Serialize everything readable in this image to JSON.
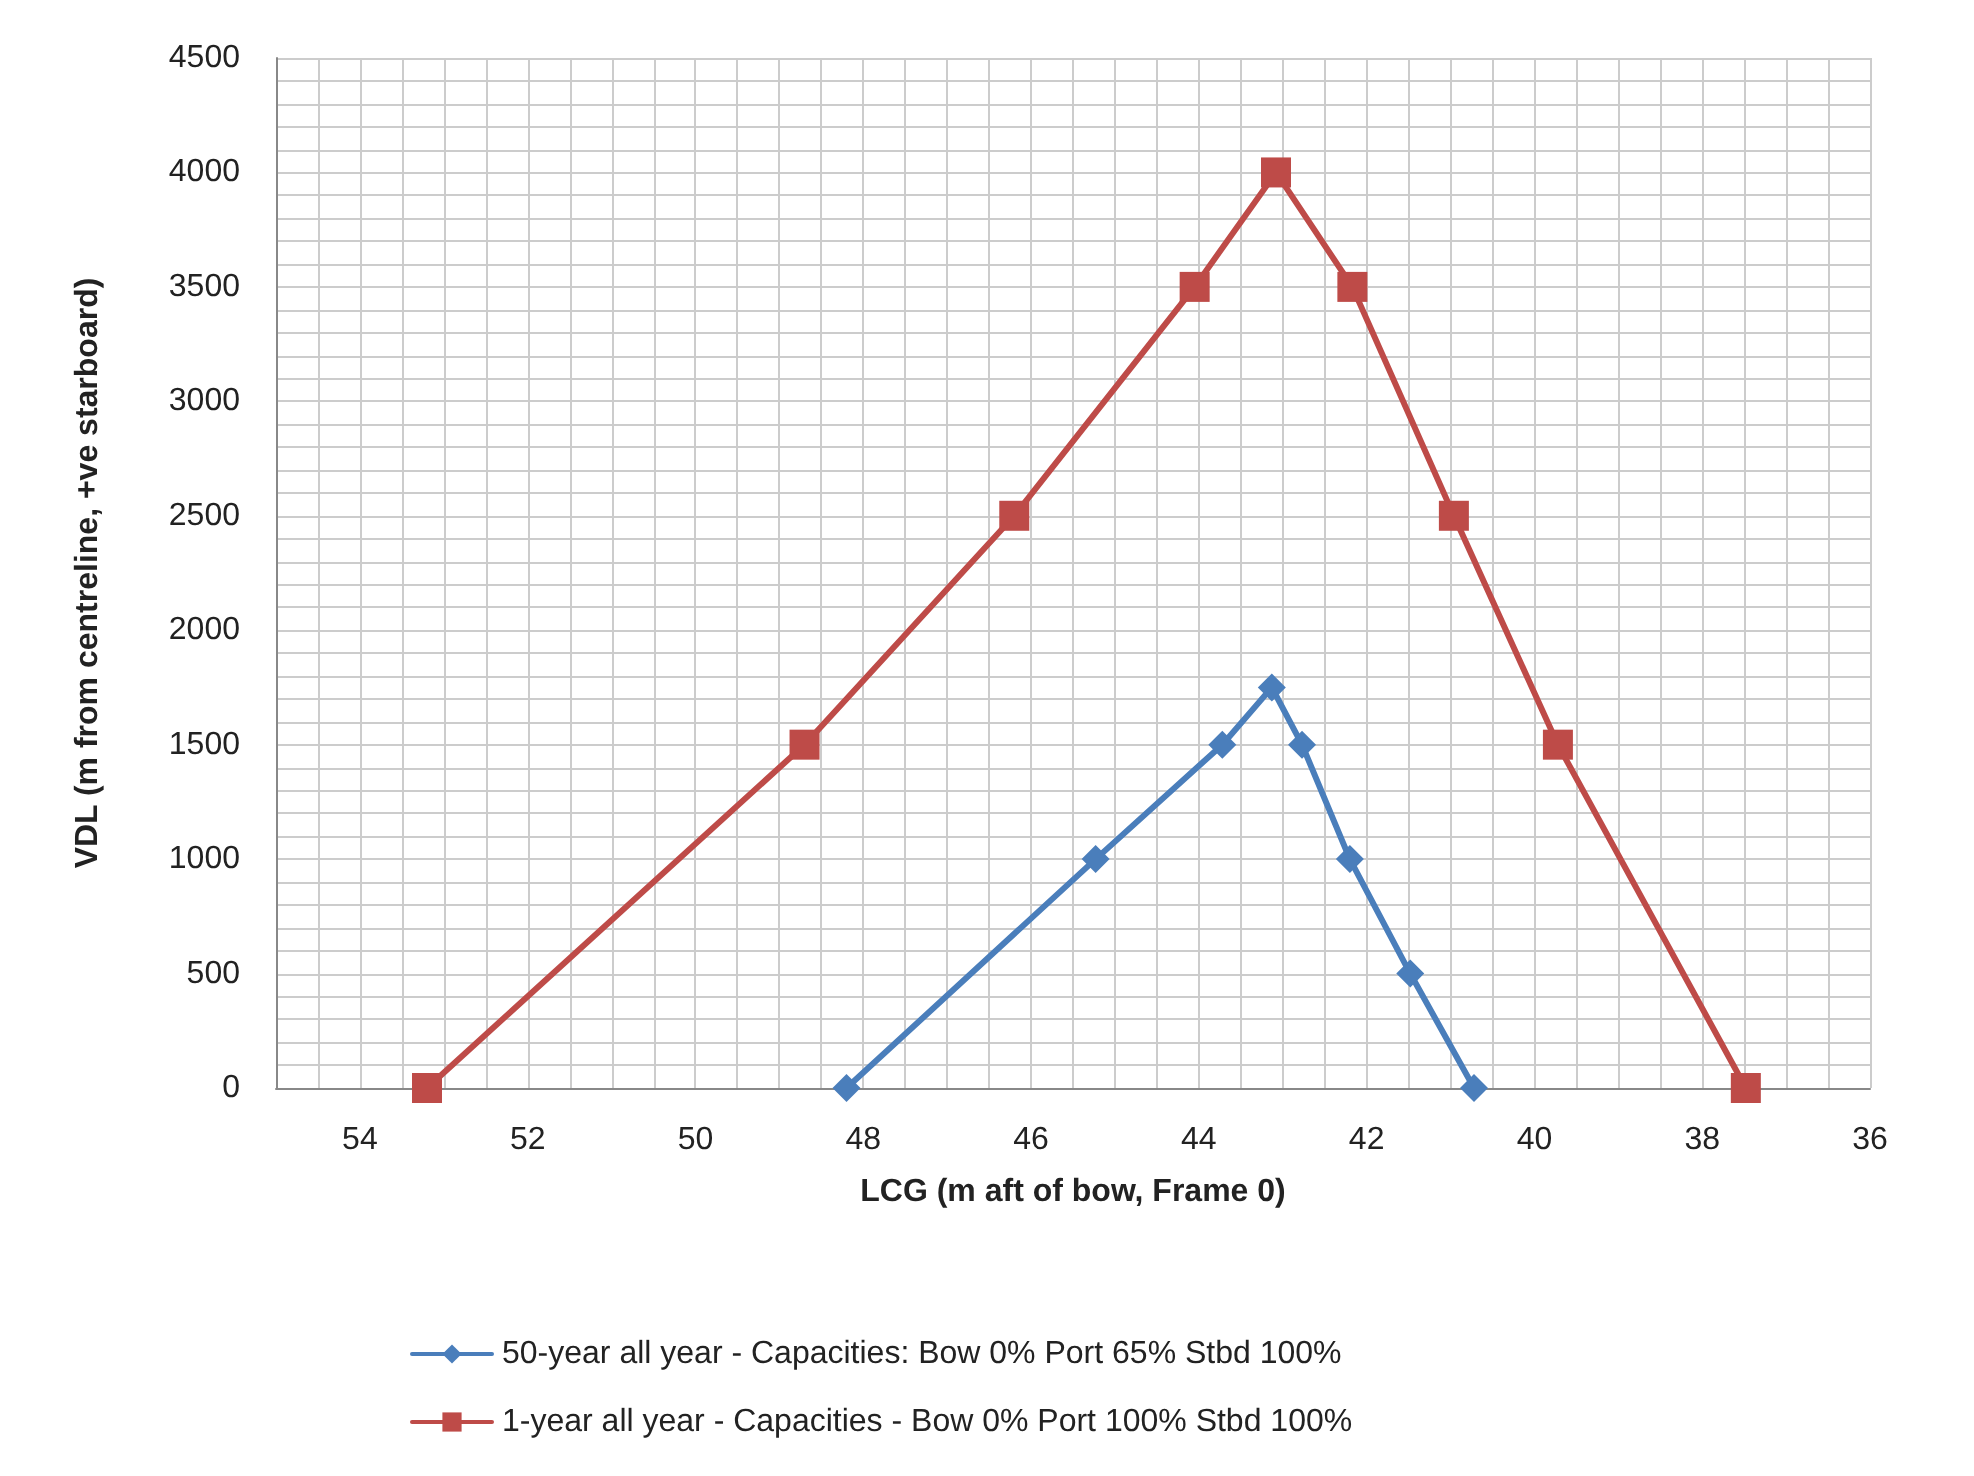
{
  "chart_data": {
    "type": "line",
    "xlabel": "LCG (m aft of bow, Frame 0)",
    "ylabel": "VDL (m from centreline, +ve starboard)",
    "xlim": [
      55,
      36
    ],
    "xticks": [
      54,
      52,
      50,
      48,
      46,
      44,
      42,
      40,
      38,
      36
    ],
    "ylim": [
      0,
      4500
    ],
    "yticks": [
      0,
      500,
      1000,
      1500,
      2000,
      2500,
      3000,
      3500,
      4000,
      4500
    ],
    "grid": true,
    "legend": "bottom",
    "line_style": "solid",
    "series": [
      {
        "name": "50-year all year - Capacities: Bow 0% Port 65% Stbd 100%",
        "color": "#4a7ebb",
        "marker": "diamond",
        "x": [
          48.2,
          45.23,
          43.72,
          43.13,
          42.77,
          42.2,
          41.48,
          40.72
        ],
        "values": [
          0,
          1000,
          1500,
          1750,
          1500,
          1000,
          500,
          0
        ]
      },
      {
        "name": "1-year all year - Capacities - Bow 0% Port 100% Stbd 100%",
        "color": "#be4b48",
        "marker": "square",
        "x": [
          53.2,
          48.7,
          46.2,
          44.05,
          43.08,
          42.17,
          40.96,
          39.72,
          37.48
        ],
        "values": [
          0,
          1500,
          2500,
          3500,
          4000,
          3500,
          2500,
          1500,
          0
        ]
      }
    ]
  }
}
